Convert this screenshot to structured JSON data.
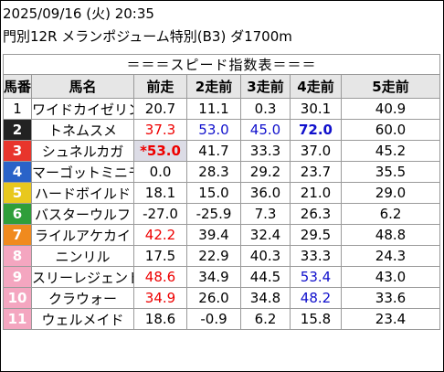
{
  "header": {
    "line1": "2025/09/16 (火) 20:35",
    "line2": "門別12R メランポジューム特別(B3) ダ1700m"
  },
  "table": {
    "title": "＝＝＝スピード指数表＝＝＝",
    "columns": [
      "馬番",
      "馬名",
      "前走",
      "2走前",
      "3走前",
      "4走前",
      "5走前"
    ],
    "rows": [
      {
        "num": "1",
        "name": "ワイドカイゼリン",
        "v": [
          "20.7",
          "11.1",
          "0.3",
          "30.1",
          "40.9"
        ]
      },
      {
        "num": "2",
        "name": "トネムスメ",
        "v": [
          "37.3",
          "53.0",
          "45.0",
          "72.0",
          "60.0"
        ]
      },
      {
        "num": "3",
        "name": "シュネルカガ",
        "v": [
          "*53.0",
          "41.7",
          "33.3",
          "37.0",
          "45.2"
        ]
      },
      {
        "num": "4",
        "name": "マーゴットミニモ",
        "v": [
          "0.0",
          "28.3",
          "29.2",
          "23.7",
          "35.5"
        ]
      },
      {
        "num": "5",
        "name": "ハードボイルド",
        "v": [
          "18.1",
          "15.0",
          "36.0",
          "21.0",
          "29.0"
        ]
      },
      {
        "num": "6",
        "name": "バスターウルフ",
        "v": [
          "-27.0",
          "-25.9",
          "7.3",
          "26.3",
          "6.2"
        ]
      },
      {
        "num": "7",
        "name": "ライルアケカイ",
        "v": [
          "42.2",
          "39.4",
          "32.4",
          "29.5",
          "48.8"
        ]
      },
      {
        "num": "8",
        "name": "ニンリル",
        "v": [
          "17.5",
          "22.9",
          "40.3",
          "33.3",
          "24.3"
        ]
      },
      {
        "num": "9",
        "name": "スリーレジェンド",
        "v": [
          "48.6",
          "34.9",
          "44.5",
          "53.4",
          "43.0"
        ]
      },
      {
        "num": "10",
        "name": "クラウォー",
        "v": [
          "34.9",
          "26.0",
          "34.8",
          "48.2",
          "33.6"
        ]
      },
      {
        "num": "11",
        "name": "ウェルメイド",
        "v": [
          "18.6",
          "-0.9",
          "6.2",
          "15.8",
          "23.4"
        ]
      }
    ]
  },
  "colors": {
    "gate": [
      "#ffffff",
      "#222222",
      "#e8352c",
      "#2a63c8",
      "#e8c81e",
      "#2f9e3a",
      "#f08a1e",
      "#f4a6c0",
      "#f4a6c0",
      "#f4a6c0",
      "#f4a6c0"
    ],
    "red": "#ee0000",
    "blue": "#1010cc"
  }
}
